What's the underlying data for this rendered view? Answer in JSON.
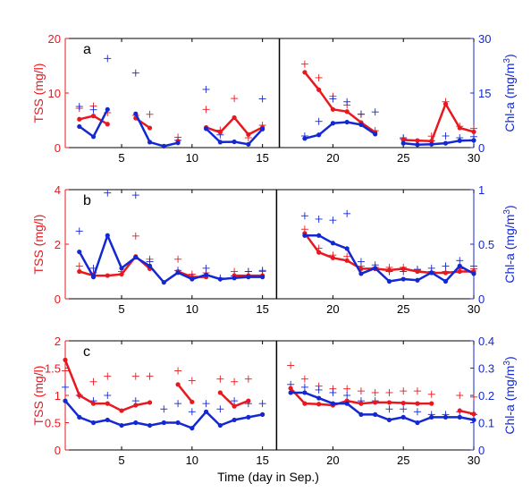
{
  "figure": {
    "xlabel": "Time (day in Sep.)",
    "left_color": "#e8191e",
    "right_color": "#1428d2"
  },
  "chart_data": [
    {
      "type": "line",
      "panel_label": "a",
      "ylabel_left": "TSS (mg/l)",
      "ylabel_right_base": "Chl-a (mg/m",
      "ylabel_right_sup": "3",
      "ylabel_right_close": ")",
      "xlim": [
        1,
        30
      ],
      "x_ticks": [
        5,
        10,
        15,
        20,
        25,
        30
      ],
      "ylim_left": [
        0,
        20
      ],
      "y_ticks_left": [
        0,
        10,
        20
      ],
      "ylim_right": [
        0,
        30
      ],
      "y_ticks_right": [
        0,
        15,
        30
      ],
      "divider_x": 16.2,
      "grid": false,
      "tss_line": [
        [
          [
            2,
            5.2
          ],
          [
            3,
            5.8
          ],
          [
            4,
            4.3
          ]
        ],
        [
          [
            6,
            5.4
          ],
          [
            7,
            3.6
          ]
        ],
        [
          [
            9,
            1.2
          ]
        ],
        [
          [
            11,
            3.7
          ],
          [
            12,
            2.8
          ],
          [
            13,
            5.5
          ],
          [
            14,
            2.4
          ],
          [
            15,
            3.7
          ]
        ],
        [
          [
            18,
            13.8
          ],
          [
            19,
            10.6
          ],
          [
            20,
            7.0
          ],
          [
            21,
            6.6
          ],
          [
            22,
            4.6
          ],
          [
            23,
            2.8
          ]
        ],
        [
          [
            25,
            1.4
          ],
          [
            26,
            1.3
          ],
          [
            27,
            1.2
          ],
          [
            28,
            8.0
          ],
          [
            29,
            3.6
          ],
          [
            30,
            2.9
          ]
        ]
      ],
      "tss_cross": [
        [
          2,
          7.2
        ],
        [
          3,
          7.6
        ],
        [
          4,
          6.4
        ],
        [
          6,
          5.9
        ],
        [
          7,
          6.1
        ],
        [
          9,
          1.9
        ],
        [
          11,
          7.0
        ],
        [
          12,
          3.2
        ],
        [
          13,
          9.0
        ],
        [
          14,
          1.8
        ],
        [
          15,
          4.1
        ],
        [
          18,
          15.3
        ],
        [
          19,
          12.8
        ],
        [
          20,
          9.4
        ],
        [
          21,
          7.8
        ],
        [
          22,
          6.1
        ],
        [
          23,
          3.1
        ],
        [
          25,
          1.6
        ],
        [
          27,
          2.1
        ],
        [
          28,
          8.4
        ],
        [
          29,
          3.9
        ],
        [
          30,
          3.5
        ]
      ],
      "chl_line": [
        [
          [
            2,
            5.8
          ],
          [
            3,
            3.0
          ],
          [
            4,
            10.5
          ]
        ],
        [
          [
            6,
            9.3
          ],
          [
            7,
            1.5
          ],
          [
            8,
            0.4
          ],
          [
            9,
            1.3
          ]
        ],
        [
          [
            11,
            5.2
          ],
          [
            12,
            1.5
          ],
          [
            13,
            1.6
          ],
          [
            14,
            0.9
          ],
          [
            15,
            5.1
          ]
        ],
        [
          [
            18,
            2.5
          ],
          [
            19,
            3.5
          ],
          [
            20,
            6.7
          ],
          [
            21,
            7.0
          ],
          [
            22,
            6.3
          ],
          [
            23,
            3.7
          ]
        ],
        [
          [
            25,
            1.2
          ],
          [
            26,
            0.8
          ],
          [
            27,
            0.9
          ],
          [
            28,
            1.2
          ],
          [
            29,
            1.9
          ],
          [
            30,
            2.0
          ]
        ]
      ],
      "chl_cross": [
        [
          2,
          11.3
        ],
        [
          3,
          10.4
        ],
        [
          4,
          24.5
        ],
        [
          6,
          20.5
        ],
        [
          9,
          2.0
        ],
        [
          11,
          16.0
        ],
        [
          12,
          3.5
        ],
        [
          15,
          13.4
        ],
        [
          18,
          3.2
        ],
        [
          19,
          7.2
        ],
        [
          20,
          13.4
        ],
        [
          21,
          12.6
        ],
        [
          22,
          9.2
        ],
        [
          23,
          9.8
        ],
        [
          25,
          2.7
        ],
        [
          27,
          1.9
        ],
        [
          28,
          3.2
        ],
        [
          29,
          2.7
        ],
        [
          30,
          3.0
        ]
      ]
    },
    {
      "type": "line",
      "panel_label": "b",
      "ylabel_left": "TSS (mg/l)",
      "ylabel_right_base": "Chl-a (mg/m",
      "ylabel_right_sup": "3",
      "ylabel_right_close": ")",
      "xlim": [
        1,
        30
      ],
      "x_ticks": [
        5,
        10,
        15,
        20,
        25,
        30
      ],
      "ylim_left": [
        0,
        4
      ],
      "y_ticks_left": [
        0,
        2,
        4
      ],
      "ylim_right": [
        0,
        1
      ],
      "y_ticks_right": [
        0,
        0.5,
        1
      ],
      "divider_x": 16.0,
      "grid": false,
      "tss_line": [
        [
          [
            2,
            1.0
          ],
          [
            3,
            0.85
          ],
          [
            4,
            0.85
          ],
          [
            5,
            0.9
          ],
          [
            6,
            1.55
          ],
          [
            7,
            1.1
          ]
        ],
        [
          [
            9,
            1.0
          ],
          [
            10,
            0.8
          ],
          [
            11,
            0.8
          ]
        ],
        [
          [
            13,
            0.85
          ],
          [
            14,
            0.85
          ],
          [
            15,
            0.85
          ]
        ],
        [
          [
            18,
            2.4
          ],
          [
            19,
            1.7
          ],
          [
            20,
            1.5
          ],
          [
            21,
            1.4
          ],
          [
            22,
            1.1
          ],
          [
            23,
            1.1
          ],
          [
            24,
            1.05
          ],
          [
            25,
            1.1
          ],
          [
            26,
            1.0
          ],
          [
            27,
            0.95
          ],
          [
            28,
            0.95
          ],
          [
            29,
            1.0
          ],
          [
            30,
            1.0
          ]
        ]
      ],
      "tss_cross": [
        [
          2,
          1.2
        ],
        [
          3,
          0.95
        ],
        [
          5,
          1.0
        ],
        [
          6,
          2.3
        ],
        [
          7,
          1.45
        ],
        [
          9,
          1.45
        ],
        [
          10,
          0.9
        ],
        [
          11,
          0.95
        ],
        [
          13,
          1.0
        ],
        [
          14,
          1.0
        ],
        [
          15,
          1.0
        ],
        [
          18,
          2.55
        ],
        [
          19,
          1.85
        ],
        [
          20,
          1.6
        ],
        [
          21,
          1.55
        ],
        [
          22,
          1.2
        ],
        [
          23,
          1.15
        ],
        [
          24,
          1.15
        ],
        [
          25,
          1.15
        ],
        [
          26,
          1.05
        ],
        [
          27,
          1.0
        ],
        [
          28,
          1.0
        ],
        [
          29,
          1.1
        ],
        [
          30,
          1.1
        ]
      ],
      "chl_line": [
        [
          [
            2,
            0.43
          ],
          [
            3,
            0.2
          ],
          [
            4,
            0.58
          ],
          [
            5,
            0.28
          ],
          [
            6,
            0.38
          ],
          [
            7,
            0.3
          ],
          [
            8,
            0.15
          ],
          [
            9,
            0.24
          ],
          [
            10,
            0.18
          ],
          [
            11,
            0.22
          ],
          [
            12,
            0.18
          ],
          [
            13,
            0.19
          ],
          [
            14,
            0.2
          ],
          [
            15,
            0.2
          ]
        ],
        [
          [
            18,
            0.58
          ],
          [
            19,
            0.58
          ],
          [
            20,
            0.51
          ],
          [
            21,
            0.46
          ],
          [
            22,
            0.23
          ],
          [
            23,
            0.28
          ],
          [
            24,
            0.16
          ],
          [
            25,
            0.18
          ],
          [
            26,
            0.17
          ],
          [
            27,
            0.24
          ],
          [
            28,
            0.16
          ],
          [
            29,
            0.3
          ],
          [
            30,
            0.23
          ]
        ]
      ],
      "chl_cross": [
        [
          2,
          0.62
        ],
        [
          3,
          0.28
        ],
        [
          4,
          0.97
        ],
        [
          6,
          0.95
        ],
        [
          7,
          0.34
        ],
        [
          9,
          0.26
        ],
        [
          10,
          0.2
        ],
        [
          11,
          0.28
        ],
        [
          12,
          0.19
        ],
        [
          13,
          0.21
        ],
        [
          14,
          0.25
        ],
        [
          15,
          0.26
        ],
        [
          18,
          0.76
        ],
        [
          19,
          0.73
        ],
        [
          20,
          0.72
        ],
        [
          21,
          0.78
        ],
        [
          22,
          0.34
        ],
        [
          23,
          0.31
        ],
        [
          24,
          0.25
        ],
        [
          25,
          0.25
        ],
        [
          26,
          0.27
        ],
        [
          27,
          0.28
        ],
        [
          28,
          0.3
        ],
        [
          29,
          0.35
        ],
        [
          30,
          0.3
        ]
      ]
    },
    {
      "type": "line",
      "panel_label": "c",
      "ylabel_left": "TSS (mg/l)",
      "ylabel_right_base": "Chl-a (mg/m",
      "ylabel_right_sup": "3",
      "ylabel_right_close": ")",
      "xlim": [
        1,
        30
      ],
      "x_ticks": [
        5,
        10,
        15,
        20,
        25,
        30
      ],
      "ylim_left": [
        0,
        2
      ],
      "y_ticks_left": [
        0,
        0.5,
        1,
        1.5,
        2
      ],
      "ylim_right": [
        0,
        0.4
      ],
      "y_ticks_right": [
        0,
        0.1,
        0.2,
        0.3,
        0.4
      ],
      "divider_x": 16.0,
      "grid": false,
      "tss_line": [
        [
          [
            1,
            1.65
          ],
          [
            2,
            1.0
          ],
          [
            3,
            0.85
          ],
          [
            4,
            0.85
          ],
          [
            5,
            0.72
          ],
          [
            6,
            0.82
          ],
          [
            7,
            0.87
          ]
        ],
        [
          [
            9,
            1.2
          ],
          [
            10,
            0.88
          ]
        ],
        [
          [
            12,
            1.05
          ],
          [
            13,
            0.8
          ],
          [
            14,
            0.9
          ]
        ],
        [
          [
            17,
            1.13
          ],
          [
            18,
            0.85
          ],
          [
            19,
            0.84
          ],
          [
            20,
            0.82
          ],
          [
            21,
            0.9
          ],
          [
            22,
            0.85
          ],
          [
            23,
            0.87
          ],
          [
            24,
            0.87
          ],
          [
            25,
            0.86
          ],
          [
            26,
            0.85
          ],
          [
            27,
            0.85
          ]
        ],
        [
          [
            29,
            0.72
          ],
          [
            30,
            0.66
          ]
        ]
      ],
      "tss_cross": [
        [
          1,
          1.45
        ],
        [
          3,
          1.25
        ],
        [
          4,
          1.35
        ],
        [
          6,
          1.35
        ],
        [
          7,
          1.35
        ],
        [
          9,
          1.45
        ],
        [
          10,
          1.27
        ],
        [
          12,
          1.3
        ],
        [
          13,
          1.25
        ],
        [
          14,
          1.3
        ],
        [
          17,
          1.55
        ],
        [
          18,
          1.3
        ],
        [
          19,
          1.17
        ],
        [
          20,
          1.12
        ],
        [
          21,
          1.12
        ],
        [
          22,
          1.08
        ],
        [
          23,
          1.05
        ],
        [
          24,
          1.05
        ],
        [
          25,
          1.08
        ],
        [
          26,
          1.08
        ],
        [
          27,
          1.02
        ],
        [
          29,
          1.0
        ],
        [
          30,
          0.97
        ]
      ],
      "chl_line": [
        [
          [
            1,
            0.18
          ],
          [
            2,
            0.12
          ],
          [
            3,
            0.1
          ],
          [
            4,
            0.11
          ],
          [
            5,
            0.09
          ],
          [
            6,
            0.1
          ],
          [
            7,
            0.09
          ],
          [
            8,
            0.1
          ],
          [
            9,
            0.1
          ],
          [
            10,
            0.08
          ],
          [
            11,
            0.14
          ],
          [
            12,
            0.09
          ],
          [
            13,
            0.11
          ],
          [
            14,
            0.12
          ],
          [
            15,
            0.13
          ]
        ],
        [
          [
            17,
            0.21
          ],
          [
            18,
            0.21
          ],
          [
            19,
            0.19
          ],
          [
            20,
            0.17
          ],
          [
            21,
            0.17
          ],
          [
            22,
            0.13
          ],
          [
            23,
            0.13
          ],
          [
            24,
            0.11
          ],
          [
            25,
            0.12
          ],
          [
            26,
            0.1
          ],
          [
            27,
            0.12
          ],
          [
            28,
            0.12
          ],
          [
            29,
            0.12
          ],
          [
            30,
            0.11
          ]
        ]
      ],
      "chl_cross": [
        [
          1,
          0.23
        ],
        [
          2,
          0.2
        ],
        [
          3,
          0.18
        ],
        [
          4,
          0.2
        ],
        [
          6,
          0.18
        ],
        [
          8,
          0.15
        ],
        [
          9,
          0.17
        ],
        [
          10,
          0.14
        ],
        [
          11,
          0.17
        ],
        [
          12,
          0.15
        ],
        [
          13,
          0.18
        ],
        [
          14,
          0.17
        ],
        [
          15,
          0.17
        ],
        [
          17,
          0.24
        ],
        [
          18,
          0.23
        ],
        [
          19,
          0.22
        ],
        [
          20,
          0.21
        ],
        [
          21,
          0.2
        ],
        [
          22,
          0.18
        ],
        [
          23,
          0.18
        ],
        [
          24,
          0.15
        ],
        [
          25,
          0.15
        ],
        [
          26,
          0.14
        ],
        [
          27,
          0.13
        ],
        [
          28,
          0.13
        ],
        [
          29,
          0.14
        ],
        [
          30,
          0.13
        ]
      ]
    }
  ]
}
